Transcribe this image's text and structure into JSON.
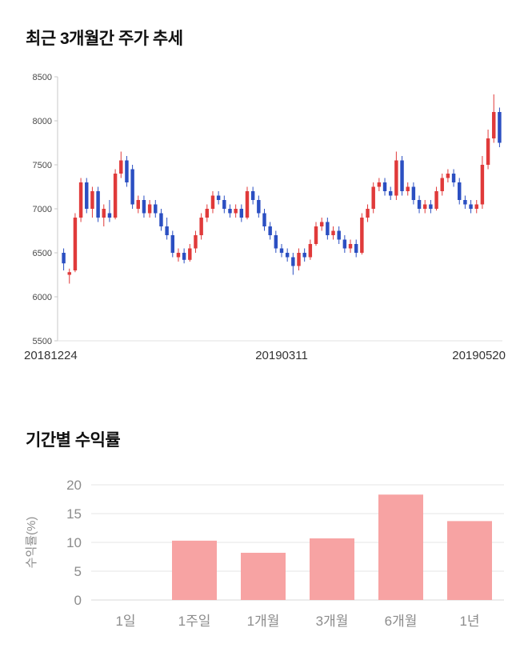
{
  "page": {
    "background": "#ffffff"
  },
  "sections": [
    {
      "title": "최근 3개월간 주가 추세"
    },
    {
      "title": "기간별 수익률"
    }
  ],
  "chart_data": [
    {
      "type": "candlestick",
      "title": "최근 3개월간 주가 추세",
      "ylim": [
        5500,
        8500
      ],
      "yticks": [
        8500,
        8000,
        7500,
        7000,
        6500,
        6000,
        5500
      ],
      "xticks": [
        "20181224",
        "20190311",
        "20190520"
      ],
      "up_color": "#e03a3a",
      "down_color": "#2b4fc2",
      "axis_color": "#c9c9c9",
      "tick_label_color": "#4a4a4a",
      "date_label_color": "#333333",
      "candles": [
        [
          6500,
          6550,
          6300,
          6380
        ],
        [
          6250,
          6320,
          6150,
          6280
        ],
        [
          6300,
          6950,
          6280,
          6900
        ],
        [
          6900,
          7350,
          6850,
          7300
        ],
        [
          7300,
          7350,
          6950,
          7000
        ],
        [
          7000,
          7250,
          6900,
          7200
        ],
        [
          7200,
          7250,
          6850,
          6900
        ],
        [
          6900,
          7050,
          6800,
          7000
        ],
        [
          6950,
          7100,
          6850,
          6900
        ],
        [
          6900,
          7450,
          6880,
          7400
        ],
        [
          7400,
          7650,
          7350,
          7550
        ],
        [
          7550,
          7600,
          7250,
          7300
        ],
        [
          7450,
          7500,
          7000,
          7050
        ],
        [
          7000,
          7150,
          6950,
          7100
        ],
        [
          7100,
          7150,
          6900,
          6950
        ],
        [
          6950,
          7100,
          6900,
          7050
        ],
        [
          7050,
          7100,
          6900,
          6950
        ],
        [
          6950,
          7000,
          6750,
          6800
        ],
        [
          6800,
          6900,
          6650,
          6700
        ],
        [
          6700,
          6750,
          6450,
          6500
        ],
        [
          6450,
          6550,
          6400,
          6500
        ],
        [
          6500,
          6550,
          6380,
          6420
        ],
        [
          6420,
          6600,
          6400,
          6550
        ],
        [
          6550,
          6750,
          6500,
          6700
        ],
        [
          6700,
          6950,
          6650,
          6900
        ],
        [
          6900,
          7050,
          6850,
          7000
        ],
        [
          7000,
          7200,
          6950,
          7150
        ],
        [
          7150,
          7200,
          7050,
          7100
        ],
        [
          7100,
          7150,
          6950,
          7000
        ],
        [
          7000,
          7050,
          6900,
          6950
        ],
        [
          6950,
          7050,
          6900,
          7000
        ],
        [
          7000,
          7050,
          6850,
          6900
        ],
        [
          6900,
          7250,
          6880,
          7200
        ],
        [
          7200,
          7250,
          7050,
          7100
        ],
        [
          7100,
          7150,
          6900,
          6950
        ],
        [
          6950,
          7000,
          6750,
          6800
        ],
        [
          6800,
          6850,
          6650,
          6700
        ],
        [
          6700,
          6750,
          6500,
          6550
        ],
        [
          6550,
          6600,
          6450,
          6500
        ],
        [
          6500,
          6550,
          6400,
          6450
        ],
        [
          6450,
          6500,
          6250,
          6350
        ],
        [
          6350,
          6550,
          6300,
          6500
        ],
        [
          6500,
          6550,
          6400,
          6450
        ],
        [
          6450,
          6650,
          6420,
          6600
        ],
        [
          6600,
          6850,
          6580,
          6800
        ],
        [
          6800,
          6900,
          6750,
          6850
        ],
        [
          6850,
          6900,
          6650,
          6700
        ],
        [
          6700,
          6800,
          6650,
          6750
        ],
        [
          6750,
          6800,
          6600,
          6650
        ],
        [
          6650,
          6700,
          6500,
          6550
        ],
        [
          6550,
          6650,
          6500,
          6600
        ],
        [
          6600,
          6650,
          6450,
          6500
        ],
        [
          6500,
          6950,
          6480,
          6900
        ],
        [
          6900,
          7050,
          6850,
          7000
        ],
        [
          7000,
          7300,
          6950,
          7250
        ],
        [
          7250,
          7350,
          7200,
          7300
        ],
        [
          7300,
          7350,
          7150,
          7200
        ],
        [
          7200,
          7250,
          7100,
          7150
        ],
        [
          7150,
          7650,
          7100,
          7550
        ],
        [
          7550,
          7600,
          7150,
          7200
        ],
        [
          7200,
          7300,
          7150,
          7250
        ],
        [
          7250,
          7300,
          7050,
          7100
        ],
        [
          7100,
          7150,
          6950,
          7000
        ],
        [
          7000,
          7100,
          6950,
          7050
        ],
        [
          7050,
          7100,
          6950,
          7000
        ],
        [
          7000,
          7250,
          6980,
          7200
        ],
        [
          7200,
          7400,
          7150,
          7350
        ],
        [
          7350,
          7450,
          7300,
          7400
        ],
        [
          7400,
          7450,
          7250,
          7300
        ],
        [
          7300,
          7350,
          7050,
          7100
        ],
        [
          7100,
          7150,
          7000,
          7050
        ],
        [
          7050,
          7100,
          6950,
          7000
        ],
        [
          7000,
          7100,
          6950,
          7050
        ],
        [
          7050,
          7600,
          7000,
          7500
        ],
        [
          7500,
          7900,
          7450,
          7800
        ],
        [
          7800,
          8300,
          7750,
          8100
        ],
        [
          8100,
          8150,
          7700,
          7750
        ]
      ]
    },
    {
      "type": "bar",
      "title": "기간별 수익률",
      "categories": [
        "1일",
        "1주일",
        "1개월",
        "3개월",
        "6개월",
        "1년"
      ],
      "values": [
        0,
        10.3,
        8.2,
        10.7,
        18.3,
        13.7
      ],
      "ylabel": "수익률(%)",
      "ylim": [
        0,
        20
      ],
      "yticks": [
        0,
        5,
        10,
        15,
        20
      ],
      "grid": true,
      "bar_color": "#f7a3a3",
      "grid_color": "#e6e6e6",
      "baseline_color": "#d9d9d9",
      "label_color": "#8c8c8c"
    }
  ]
}
